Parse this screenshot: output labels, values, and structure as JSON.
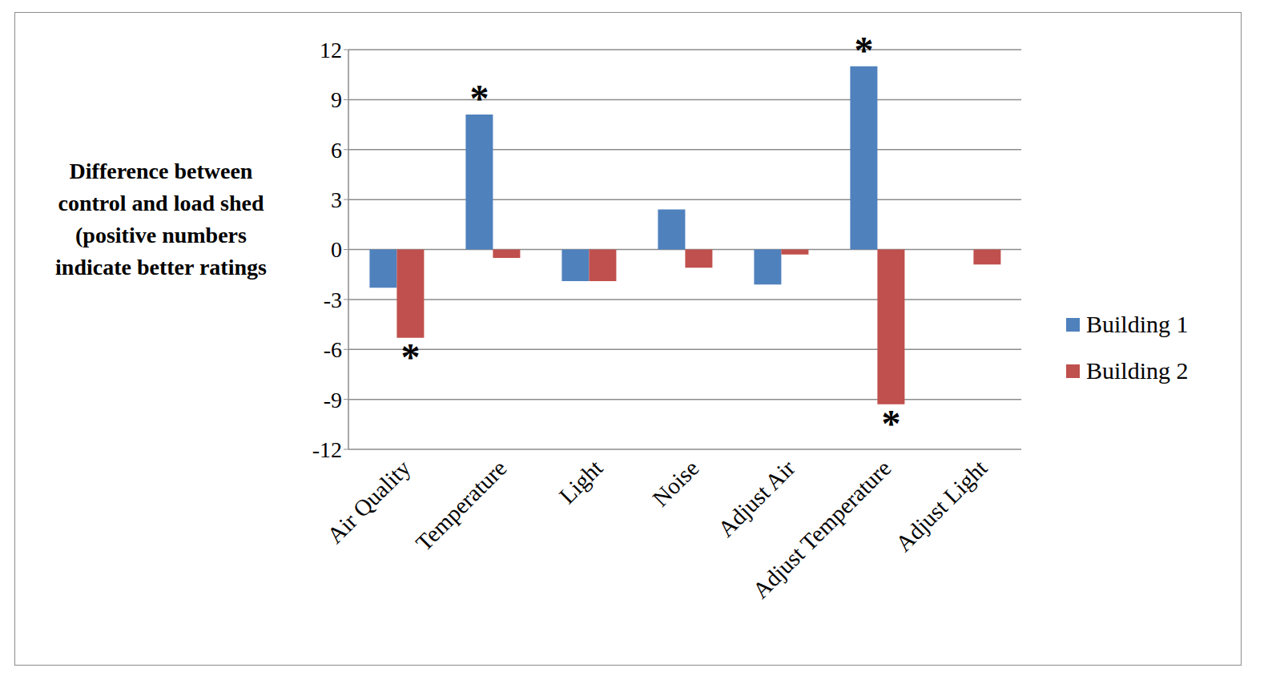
{
  "chart_data": {
    "type": "bar",
    "y_label": "Difference between control and load shed (positive numbers indicate better ratings",
    "categories": [
      "Air Quality",
      "Temperature",
      "Light",
      "Noise",
      "Adjust Air",
      "Adjust Temperature",
      "Adjust Light"
    ],
    "series": [
      {
        "name": "Building 1",
        "color": "#4f81bd",
        "values": [
          -2.3,
          8.1,
          -1.9,
          2.4,
          -2.1,
          11.0,
          0
        ]
      },
      {
        "name": "Building 2",
        "color": "#c0504d",
        "values": [
          -5.3,
          -0.5,
          -1.9,
          -1.1,
          -0.3,
          -9.3,
          -0.9
        ]
      }
    ],
    "ylim": [
      -12,
      12
    ],
    "yticks": [
      -12,
      -9,
      -6,
      -3,
      0,
      3,
      6,
      9,
      12
    ],
    "grid": true,
    "legend": "right",
    "annotations": [
      {
        "text": "*",
        "category": "Air Quality",
        "series": "Building 2"
      },
      {
        "text": "*",
        "category": "Temperature",
        "series": "Building 1"
      },
      {
        "text": "*",
        "category": "Adjust Temperature",
        "series": "Building 1"
      },
      {
        "text": "*",
        "category": "Adjust Temperature",
        "series": "Building 2"
      }
    ]
  }
}
